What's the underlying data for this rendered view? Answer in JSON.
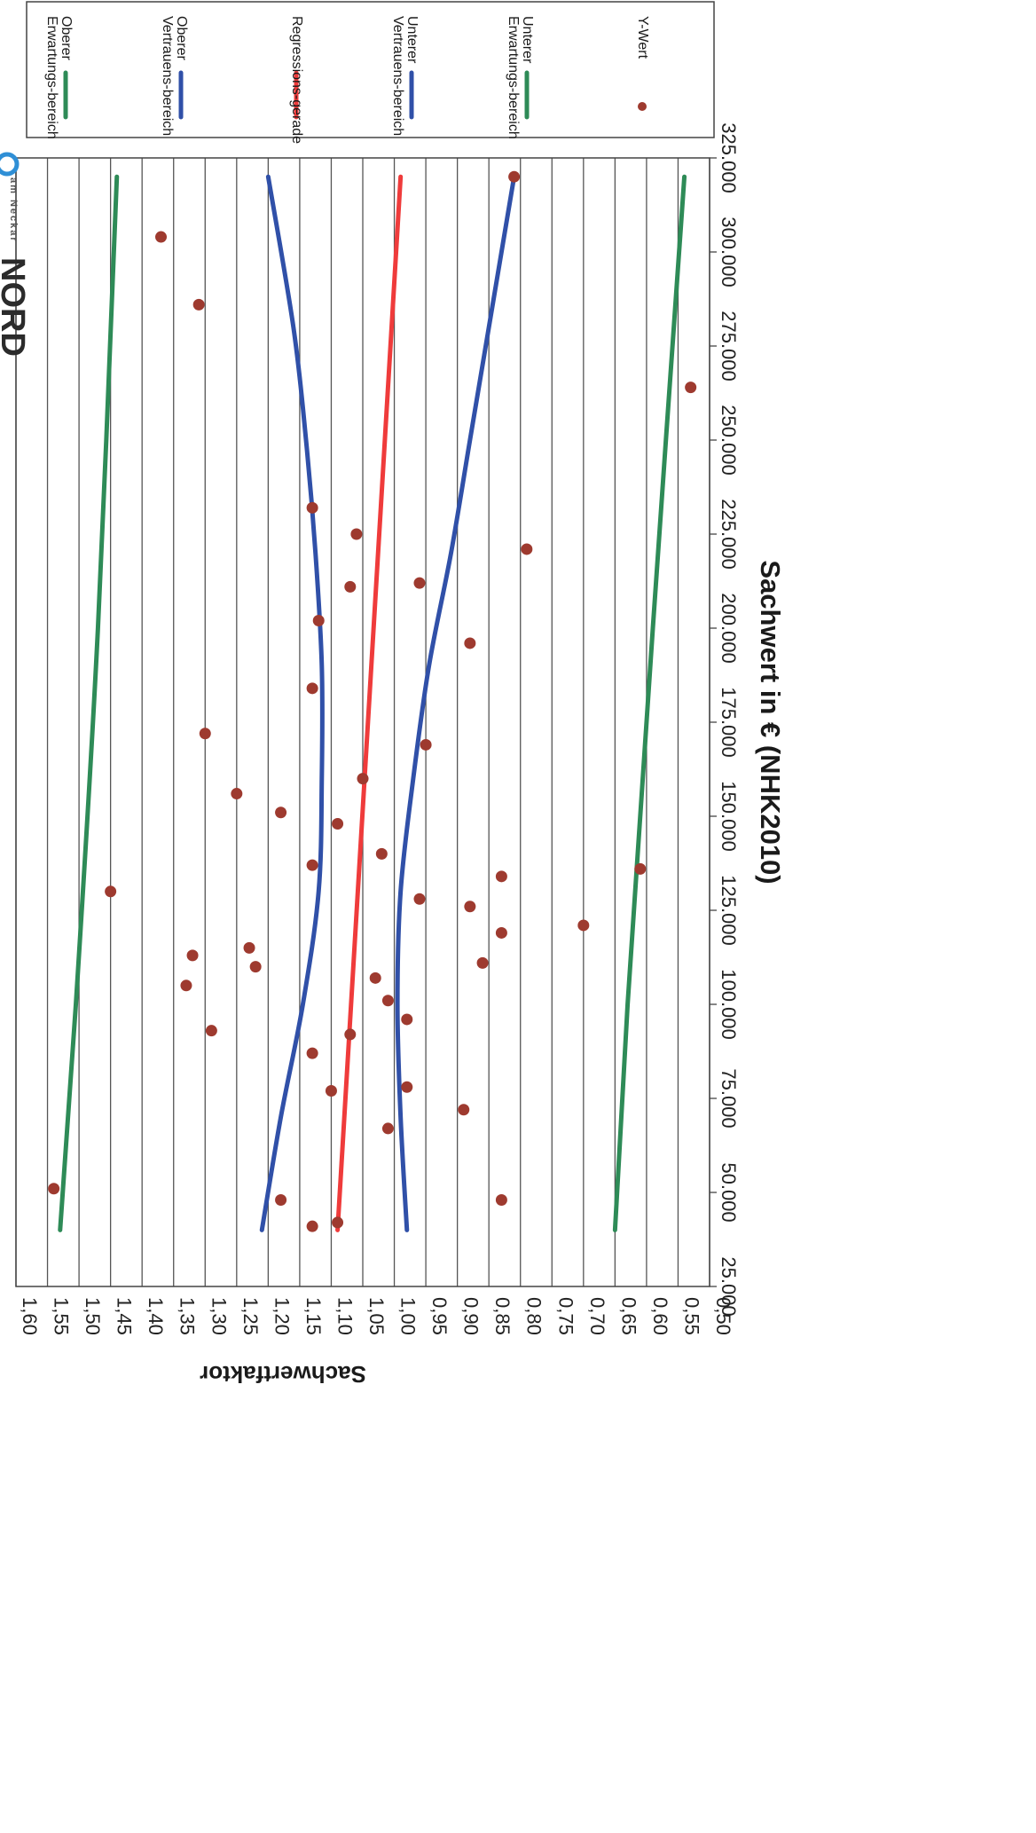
{
  "chart_data": {
    "type": "scatter",
    "xlabel": "Sachwert in € (NHK2010)",
    "ylabel": "Sachwertfaktor",
    "xlim": [
      25000,
      325000
    ],
    "ylim": [
      0.5,
      1.6
    ],
    "x_ticks": [
      "25.000",
      "50.000",
      "75.000",
      "100.000",
      "125.000",
      "150.000",
      "175.000",
      "200.000",
      "225.000",
      "250.000",
      "275.000",
      "300.000",
      "325.000"
    ],
    "y_ticks": [
      "0,50",
      "0,55",
      "0,60",
      "0,65",
      "0,70",
      "0,75",
      "0,80",
      "0,85",
      "0,90",
      "0,95",
      "1,00",
      "1,05",
      "1,10",
      "1,15",
      "1,20",
      "1,25",
      "1,30",
      "1,35",
      "1,40",
      "1,45",
      "1,50",
      "1,55",
      "1,60"
    ],
    "grid": true,
    "orientation": "rotated 90° clockwise",
    "legend_position": "top",
    "series": [
      {
        "name": "Oberer Erwartungs-bereich",
        "kind": "line",
        "color": "#2e8b57",
        "x": [
          40000,
          100000,
          200000,
          320000
        ],
        "y": [
          1.53,
          1.505,
          1.47,
          1.44
        ]
      },
      {
        "name": "Oberer Vertrauens-bereich",
        "kind": "line",
        "color": "#3050a8",
        "x": [
          40000,
          70000,
          100000,
          130000,
          160000,
          190000,
          220000,
          250000,
          280000,
          320000
        ],
        "y": [
          1.21,
          1.18,
          1.145,
          1.12,
          1.115,
          1.115,
          1.125,
          1.14,
          1.16,
          1.2
        ]
      },
      {
        "name": "Regressions-gerade",
        "kind": "line",
        "color": "#ef3b3b",
        "x": [
          40000,
          320000
        ],
        "y": [
          1.09,
          0.99
        ]
      },
      {
        "name": "Unterer Vertrauens-bereich",
        "kind": "line",
        "color": "#3050a8",
        "x": [
          40000,
          70000,
          100000,
          130000,
          160000,
          190000,
          220000,
          250000,
          280000,
          320000
        ],
        "y": [
          0.98,
          0.99,
          0.995,
          0.99,
          0.97,
          0.945,
          0.91,
          0.88,
          0.85,
          0.81
        ]
      },
      {
        "name": "Unterer Erwartungs-bereich",
        "kind": "line",
        "color": "#2e8b57",
        "x": [
          40000,
          100000,
          200000,
          320000
        ],
        "y": [
          0.65,
          0.63,
          0.59,
          0.54
        ]
      },
      {
        "name": "Y-Wert",
        "kind": "scatter",
        "color": "#9e3a2f",
        "points": [
          [
            41000,
            1.13
          ],
          [
            42000,
            1.09
          ],
          [
            48000,
            1.18
          ],
          [
            48000,
            0.83
          ],
          [
            51000,
            1.54
          ],
          [
            67000,
            1.01
          ],
          [
            72000,
            0.89
          ],
          [
            77000,
            1.1
          ],
          [
            78000,
            0.98
          ],
          [
            87000,
            1.13
          ],
          [
            92000,
            1.07
          ],
          [
            93000,
            1.29
          ],
          [
            96000,
            0.98
          ],
          [
            101000,
            1.01
          ],
          [
            105000,
            1.33
          ],
          [
            107000,
            1.03
          ],
          [
            110000,
            1.22
          ],
          [
            111000,
            0.86
          ],
          [
            113000,
            1.32
          ],
          [
            115000,
            1.23
          ],
          [
            119000,
            0.83
          ],
          [
            121000,
            0.7
          ],
          [
            126000,
            0.88
          ],
          [
            128000,
            0.96
          ],
          [
            130000,
            1.45
          ],
          [
            134000,
            0.83
          ],
          [
            136000,
            0.61
          ],
          [
            137000,
            1.13
          ],
          [
            140000,
            1.02
          ],
          [
            148000,
            1.09
          ],
          [
            151000,
            1.18
          ],
          [
            156000,
            1.25
          ],
          [
            160000,
            1.05
          ],
          [
            169000,
            0.95
          ],
          [
            172000,
            1.3
          ],
          [
            184000,
            1.13
          ],
          [
            196000,
            0.88
          ],
          [
            202000,
            1.12
          ],
          [
            211000,
            1.07
          ],
          [
            212000,
            0.96
          ],
          [
            221000,
            0.79
          ],
          [
            225000,
            1.06
          ],
          [
            232000,
            1.13
          ],
          [
            264000,
            0.53
          ],
          [
            286000,
            1.31
          ],
          [
            304000,
            1.37
          ],
          [
            320000,
            0.81
          ]
        ]
      }
    ]
  },
  "logo": {
    "text": "NORD",
    "subtext": "am Neckar",
    "accent_color": "#2f8fd6"
  }
}
